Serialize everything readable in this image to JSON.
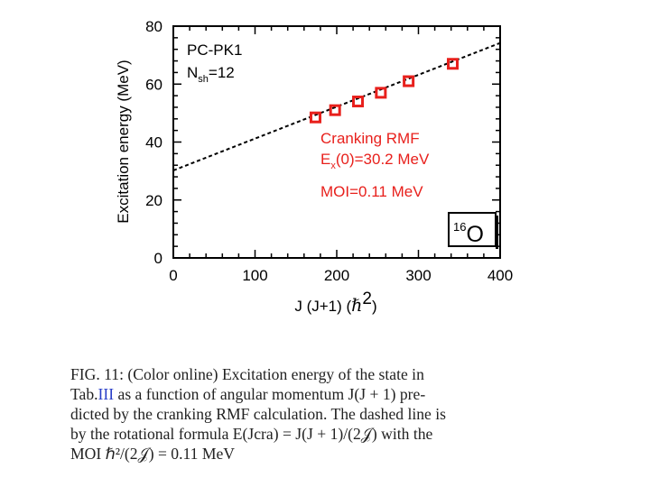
{
  "chart_data": {
    "type": "scatter",
    "ylabel": "Excitation energy (MeV)",
    "xlabel_text": "J (J+1) (",
    "xlabel_hbar": "ℏ",
    "xlabel_power": "2",
    "xlabel_close": ")",
    "xlim": [
      0,
      400
    ],
    "ylim": [
      0,
      80
    ],
    "x_ticks": [
      "0",
      "100",
      "200",
      "300",
      "400"
    ],
    "y_ticks": [
      "0",
      "20",
      "40",
      "60",
      "80"
    ],
    "series": [
      {
        "name": "Cranking RMF",
        "points": [
          {
            "x": 174,
            "y": 48.5
          },
          {
            "x": 198,
            "y": 51
          },
          {
            "x": 226,
            "y": 54
          },
          {
            "x": 254,
            "y": 57
          },
          {
            "x": 288,
            "y": 61
          },
          {
            "x": 342,
            "y": 67
          }
        ]
      }
    ],
    "fit_line": {
      "intercept": 30.2,
      "slope": 0.11,
      "style": "dashed"
    },
    "annotations": {
      "force": "PC-PK1",
      "nsh_main": "N",
      "nsh_sub": "sh",
      "nsh_value": "=12",
      "method": "Cranking RMF",
      "ex_main": "E",
      "ex_sub": "x",
      "ex_value": "(0)=30.2 MeV",
      "moi": "MOI=0.11 MeV",
      "nucleus_mass": "16",
      "nucleus_symbol": "O"
    },
    "colors": {
      "points": "#e8201c",
      "line": "#000000",
      "text": "#e8201c"
    }
  },
  "caption": {
    "line1": "FIG. 11: (Color online) Excitation energy of the state in",
    "line2_pre": "Tab.",
    "line2_ref": "III",
    "line2_post": " as a function of angular momentum J(J + 1) pre-",
    "line3": "dicted by the cranking RMF calculation. The dashed line is",
    "line4": "by the rotational formula E(Jcra) = J(J + 1)/(2𝒥) with the",
    "line5": "MOI ℏ²/(2𝒥) = 0.11 MeV"
  }
}
